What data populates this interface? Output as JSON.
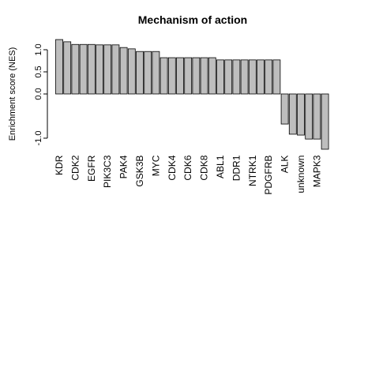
{
  "chart_data": {
    "type": "bar",
    "title": "Mechanism of action",
    "ylabel": "Enrichment score  (NES)",
    "categories": [
      "KDR",
      null,
      "CDK2",
      null,
      "EGFR",
      null,
      "PIK3C3",
      null,
      "PAK4",
      null,
      "GSK3B",
      null,
      "MYC",
      null,
      "CDK4",
      null,
      "CDK6",
      null,
      "CDK8",
      null,
      "ABL1",
      null,
      "DDR1",
      null,
      "NTRK1",
      null,
      "PDGFRB",
      null,
      "ALK",
      null,
      "unknown",
      null,
      "MAPK3",
      null
    ],
    "values": [
      1.23,
      1.18,
      1.12,
      1.12,
      1.12,
      1.11,
      1.11,
      1.11,
      1.05,
      1.02,
      0.96,
      0.96,
      0.96,
      0.82,
      0.82,
      0.82,
      0.82,
      0.82,
      0.82,
      0.82,
      0.77,
      0.77,
      0.77,
      0.77,
      0.77,
      0.77,
      0.77,
      0.77,
      -0.68,
      -0.91,
      -0.93,
      -1.02,
      -1.02,
      -1.25
    ],
    "color": "#bebebe",
    "ylim": [
      -1.35,
      1.33
    ],
    "yticks": [
      {
        "value": -1,
        "label": "-1.0"
      },
      {
        "value": 0,
        "label": "0.0"
      },
      {
        "value": 0.5,
        "label": "0.5"
      },
      {
        "value": 1,
        "label": "1.0"
      }
    ]
  }
}
